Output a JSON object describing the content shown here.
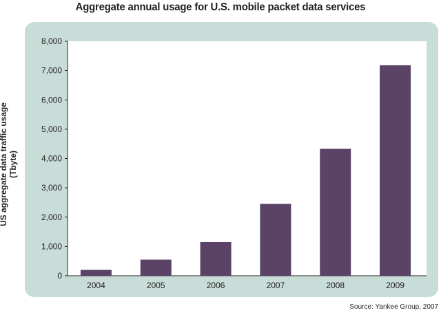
{
  "chart_data": {
    "type": "bar",
    "title": "Aggregate annual usage for U.S. mobile packet data services",
    "xlabel": "",
    "ylabel": "US aggregate data traffic usage (Tbyte)",
    "categories": [
      "2004",
      "2005",
      "2006",
      "2007",
      "2008",
      "2009"
    ],
    "values": [
      200,
      550,
      1150,
      2450,
      4330,
      7180
    ],
    "ylim": [
      0,
      8000
    ],
    "yticks": [
      0,
      1000,
      2000,
      3000,
      4000,
      5000,
      6000,
      7000,
      8000
    ],
    "ytick_labels": [
      "0",
      "1,000",
      "2,000",
      "3,000",
      "4,000",
      "5,000",
      "6,000",
      "7,000",
      "8,000"
    ],
    "grid": false,
    "legend": "none",
    "source": "Source: Yankee Group, 2007"
  },
  "colors": {
    "bar": "#5a4366",
    "panel": "#c8dcd8",
    "plot_background": "#ffffff",
    "text": "#231f20"
  }
}
